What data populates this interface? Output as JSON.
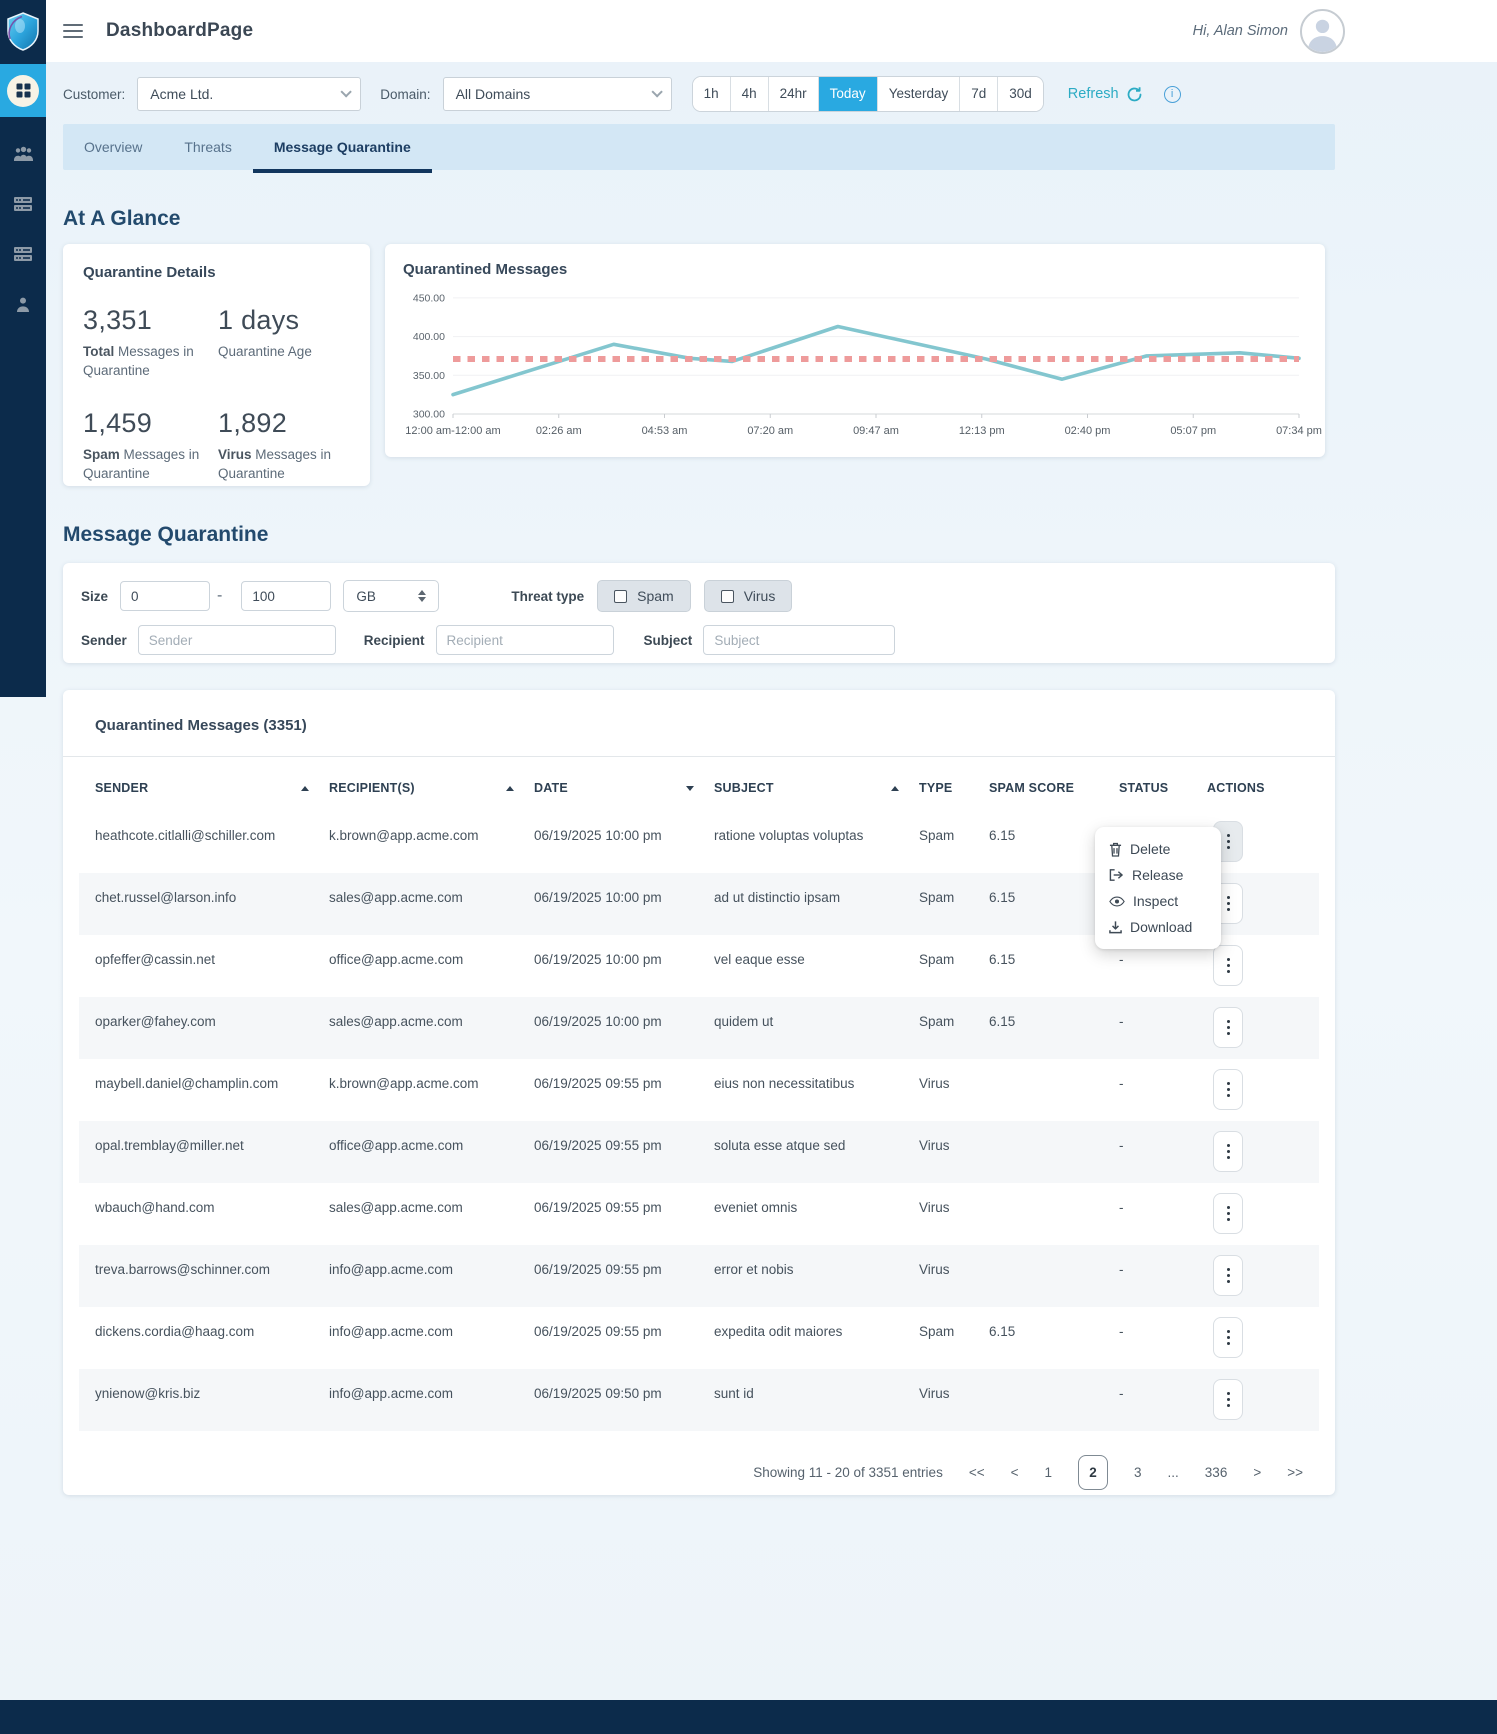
{
  "header": {
    "title": "DashboardPage",
    "greeting": "Hi, Alan Simon"
  },
  "filters_bar": {
    "customer_label": "Customer:",
    "customer_value": "Acme Ltd.",
    "domain_label": "Domain:",
    "domain_value": "All Domains",
    "ranges": [
      "1h",
      "4h",
      "24hr",
      "Today",
      "Yesterday",
      "7d",
      "30d"
    ],
    "active_range": "Today",
    "refresh_label": "Refresh",
    "info_glyph": "i"
  },
  "tabs": [
    {
      "label": "Overview",
      "active": false
    },
    {
      "label": "Threats",
      "active": false
    },
    {
      "label": "Message Quarantine",
      "active": true
    }
  ],
  "at_a_glance": {
    "heading": "At A Glance",
    "details_card": {
      "title": "Quarantine Details",
      "stats": [
        {
          "value": "3,351",
          "label_bold": "Total",
          "label_rest": "Messages in Quarantine"
        },
        {
          "value": "1 days",
          "label_bold": "",
          "label_rest": "Quarantine Age"
        },
        {
          "value": "1,459",
          "label_bold": "Spam",
          "label_rest": "Messages in Quarantine"
        },
        {
          "value": "1,892",
          "label_bold": "Virus",
          "label_rest": "Messages in Quarantine"
        }
      ]
    }
  },
  "chart_data": {
    "type": "line",
    "title": "Quarantined Messages",
    "x_ticks": [
      "12:00 am-12:00 am",
      "02:26 am",
      "04:53 am",
      "07:20 am",
      "09:47 am",
      "12:13 pm",
      "02:40 pm",
      "05:07 pm",
      "07:34 pm"
    ],
    "y_tick_labels": [
      "450.00",
      "400.00",
      "350.00",
      "300.00"
    ],
    "y_ticks": [
      450,
      400,
      350,
      300
    ],
    "ylim": [
      300,
      455
    ],
    "grid": true,
    "legend": "none",
    "series": [
      {
        "name": "Quarantined Messages",
        "type": "line",
        "color": "#83c6cf",
        "points": [
          [
            0,
            325
          ],
          [
            0.19,
            390
          ],
          [
            0.28,
            372
          ],
          [
            0.33,
            368
          ],
          [
            0.455,
            413
          ],
          [
            0.63,
            371
          ],
          [
            0.72,
            345
          ],
          [
            0.82,
            375
          ],
          [
            0.93,
            379
          ],
          [
            1,
            372
          ]
        ]
      },
      {
        "name": "Threshold",
        "type": "dashed-horizontal",
        "color": "#ee9b9b",
        "value": 371
      }
    ]
  },
  "quarantine_section": {
    "heading": "Message Quarantine",
    "filters": {
      "size_label": "Size",
      "size_min": "0",
      "size_dash": "-",
      "size_max": "100",
      "size_unit": "GB",
      "threat_type_label": "Threat type",
      "threat_options": [
        "Spam",
        "Virus"
      ],
      "sender_label": "Sender",
      "sender_placeholder": "Sender",
      "recipient_label": "Recipient",
      "recipient_placeholder": "Recipient",
      "subject_label": "Subject",
      "subject_placeholder": "Subject"
    }
  },
  "table": {
    "title": "Quarantined Messages (3351)",
    "columns": [
      {
        "label": "SENDER",
        "sort": "asc"
      },
      {
        "label": "RECIPIENT(S)",
        "sort": "asc"
      },
      {
        "label": "DATE",
        "sort": "desc"
      },
      {
        "label": "SUBJECT",
        "sort": "asc"
      },
      {
        "label": "TYPE",
        "sort": null
      },
      {
        "label": "SPAM SCORE",
        "sort": null
      },
      {
        "label": "STATUS",
        "sort": null
      },
      {
        "label": "ACTIONS",
        "sort": null
      }
    ],
    "rows": [
      {
        "sender": "heathcote.citlalli@schiller.com",
        "recipient": "k.brown@app.acme.com",
        "date": "06/19/2025 10:00 pm",
        "subject": "ratione voluptas voluptas",
        "type": "Spam",
        "spam_score": "6.15",
        "status": "-"
      },
      {
        "sender": "chet.russel@larson.info",
        "recipient": "sales@app.acme.com",
        "date": "06/19/2025 10:00 pm",
        "subject": "ad ut distinctio ipsam",
        "type": "Spam",
        "spam_score": "6.15",
        "status": "-"
      },
      {
        "sender": "opfeffer@cassin.net",
        "recipient": "office@app.acme.com",
        "date": "06/19/2025 10:00 pm",
        "subject": "vel eaque esse",
        "type": "Spam",
        "spam_score": "6.15",
        "status": "-"
      },
      {
        "sender": "oparker@fahey.com",
        "recipient": "sales@app.acme.com",
        "date": "06/19/2025 10:00 pm",
        "subject": "quidem ut",
        "type": "Spam",
        "spam_score": "6.15",
        "status": "-"
      },
      {
        "sender": "maybell.daniel@champlin.com",
        "recipient": "k.brown@app.acme.com",
        "date": "06/19/2025 09:55 pm",
        "subject": "eius non necessitatibus",
        "type": "Virus",
        "spam_score": "",
        "status": "-"
      },
      {
        "sender": "opal.tremblay@miller.net",
        "recipient": "office@app.acme.com",
        "date": "06/19/2025 09:55 pm",
        "subject": "soluta esse atque sed",
        "type": "Virus",
        "spam_score": "",
        "status": "-"
      },
      {
        "sender": "wbauch@hand.com",
        "recipient": "sales@app.acme.com",
        "date": "06/19/2025 09:55 pm",
        "subject": "eveniet omnis",
        "type": "Virus",
        "spam_score": "",
        "status": "-"
      },
      {
        "sender": "treva.barrows@schinner.com",
        "recipient": "info@app.acme.com",
        "date": "06/19/2025 09:55 pm",
        "subject": "error et nobis",
        "type": "Virus",
        "spam_score": "",
        "status": "-"
      },
      {
        "sender": "dickens.cordia@haag.com",
        "recipient": "info@app.acme.com",
        "date": "06/19/2025 09:55 pm",
        "subject": "expedita odit maiores",
        "type": "Spam",
        "spam_score": "6.15",
        "status": "-"
      },
      {
        "sender": "ynienow@kris.biz",
        "recipient": "info@app.acme.com",
        "date": "06/19/2025 09:50 pm",
        "subject": "sunt id",
        "type": "Virus",
        "spam_score": "",
        "status": "-"
      }
    ],
    "context_menu": {
      "items": [
        {
          "icon": "trash-icon",
          "label": "Delete"
        },
        {
          "icon": "release-icon",
          "label": "Release"
        },
        {
          "icon": "eye-icon",
          "label": "Inspect"
        },
        {
          "icon": "download-icon",
          "label": "Download"
        }
      ]
    },
    "pagination": {
      "summary": "Showing 11 - 20 of 3351 entries",
      "first": "<<",
      "prev": "<",
      "pages": [
        "1",
        "2",
        "3",
        "...",
        "336"
      ],
      "active_page": "2",
      "next": ">",
      "last": ">>"
    }
  },
  "colors": {
    "sidebar": "#0c2b4b",
    "accent_blue": "#29a9e1",
    "tabs_bar": "#d3e7f5",
    "heading_navy": "#234a6d",
    "chart_line": "#83c6cf",
    "chart_threshold": "#ee9b9b",
    "refresh_teal": "#2cabc4",
    "row_stripe": "#f5f7f9"
  }
}
